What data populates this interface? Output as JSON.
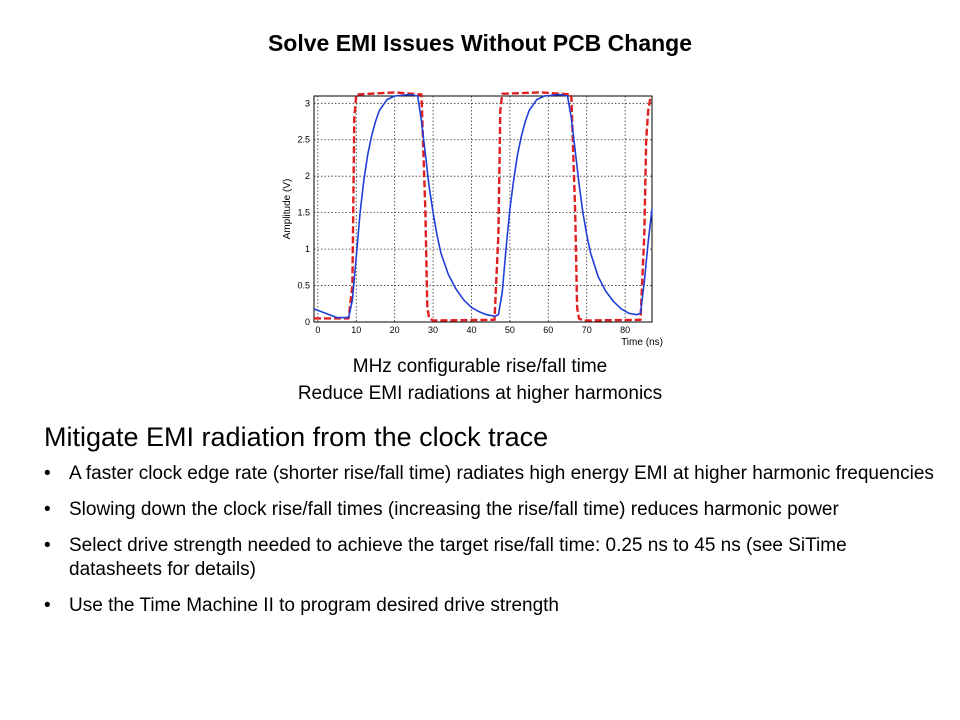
{
  "slide": {
    "title": "Solve EMI Issues Without PCB Change",
    "caption_line1": "MHz configurable rise/fall time",
    "caption_line2": "Reduce EMI radiations at higher harmonics",
    "section_heading": "Mitigate EMI radiation from the clock trace",
    "bullets": [
      "A faster clock edge rate (shorter rise/fall time) radiates high energy EMI at higher harmonic frequencies",
      "Slowing down the clock rise/fall times (increasing the rise/fall time) reduces harmonic power",
      "Select drive strength needed to achieve the target rise/fall time: 0.25 ns to 45 ns (see SiTime datasheets for details)",
      "Use the Time Machine II to program desired drive strength"
    ],
    "bullet_symbol": "•"
  },
  "chart_data": {
    "type": "line",
    "title": "",
    "xlabel": "Time (ns)",
    "ylabel": "Amplitude (V)",
    "xlim": [
      -1,
      87
    ],
    "ylim": [
      0,
      3.1
    ],
    "xticks": [
      0,
      10,
      20,
      30,
      40,
      50,
      60,
      70,
      80
    ],
    "yticks": [
      0,
      0.5,
      1,
      1.5,
      2,
      2.5,
      3
    ],
    "ytick_labels": [
      "0",
      "0.5",
      "1",
      "1.5",
      "2",
      "2.5",
      "3"
    ],
    "grid": true,
    "legend": "none",
    "series": [
      {
        "color": "#e02020",
        "style": "dashed",
        "x": [
          -1,
          8,
          9,
          9.5,
          10,
          20,
          27,
          28,
          28.5,
          29,
          30,
          46,
          47,
          47.5,
          48,
          58,
          66,
          67,
          67.5,
          68,
          69,
          84,
          85,
          85.5,
          86,
          86.5,
          87
        ],
        "y": [
          0.05,
          0.05,
          0.5,
          2.8,
          3.12,
          3.15,
          3.12,
          1.5,
          0.2,
          0.05,
          0.02,
          0.03,
          1.2,
          2.9,
          3.13,
          3.15,
          3.12,
          1.5,
          0.2,
          0.05,
          0.02,
          0.03,
          1.2,
          2.5,
          2.9,
          3.05,
          3.1
        ]
      },
      {
        "color": "#1f3fd6",
        "style": "solid",
        "x": [
          -1,
          2,
          5,
          8,
          9,
          10,
          11,
          12,
          13,
          14,
          15,
          16,
          18,
          20,
          24,
          26,
          27,
          28,
          29,
          30,
          31,
          32,
          34,
          36,
          38,
          40,
          42,
          44,
          46,
          47,
          48,
          49,
          50,
          51,
          52,
          53,
          54,
          55,
          57,
          59,
          63,
          65,
          66,
          67,
          68,
          69,
          70,
          71,
          73,
          75,
          77,
          79,
          81,
          83,
          84,
          85,
          86,
          87
        ],
        "y": [
          0.18,
          0.12,
          0.06,
          0.06,
          0.3,
          0.9,
          1.5,
          1.95,
          2.3,
          2.55,
          2.75,
          2.9,
          3.05,
          3.1,
          3.12,
          3.1,
          2.75,
          2.3,
          1.85,
          1.5,
          1.2,
          0.95,
          0.65,
          0.45,
          0.3,
          0.2,
          0.14,
          0.1,
          0.08,
          0.1,
          0.4,
          1.0,
          1.55,
          1.95,
          2.3,
          2.55,
          2.75,
          2.9,
          3.05,
          3.1,
          3.12,
          3.1,
          2.8,
          2.35,
          1.9,
          1.5,
          1.2,
          0.95,
          0.62,
          0.42,
          0.28,
          0.18,
          0.12,
          0.1,
          0.12,
          0.55,
          1.1,
          1.55
        ]
      }
    ]
  }
}
